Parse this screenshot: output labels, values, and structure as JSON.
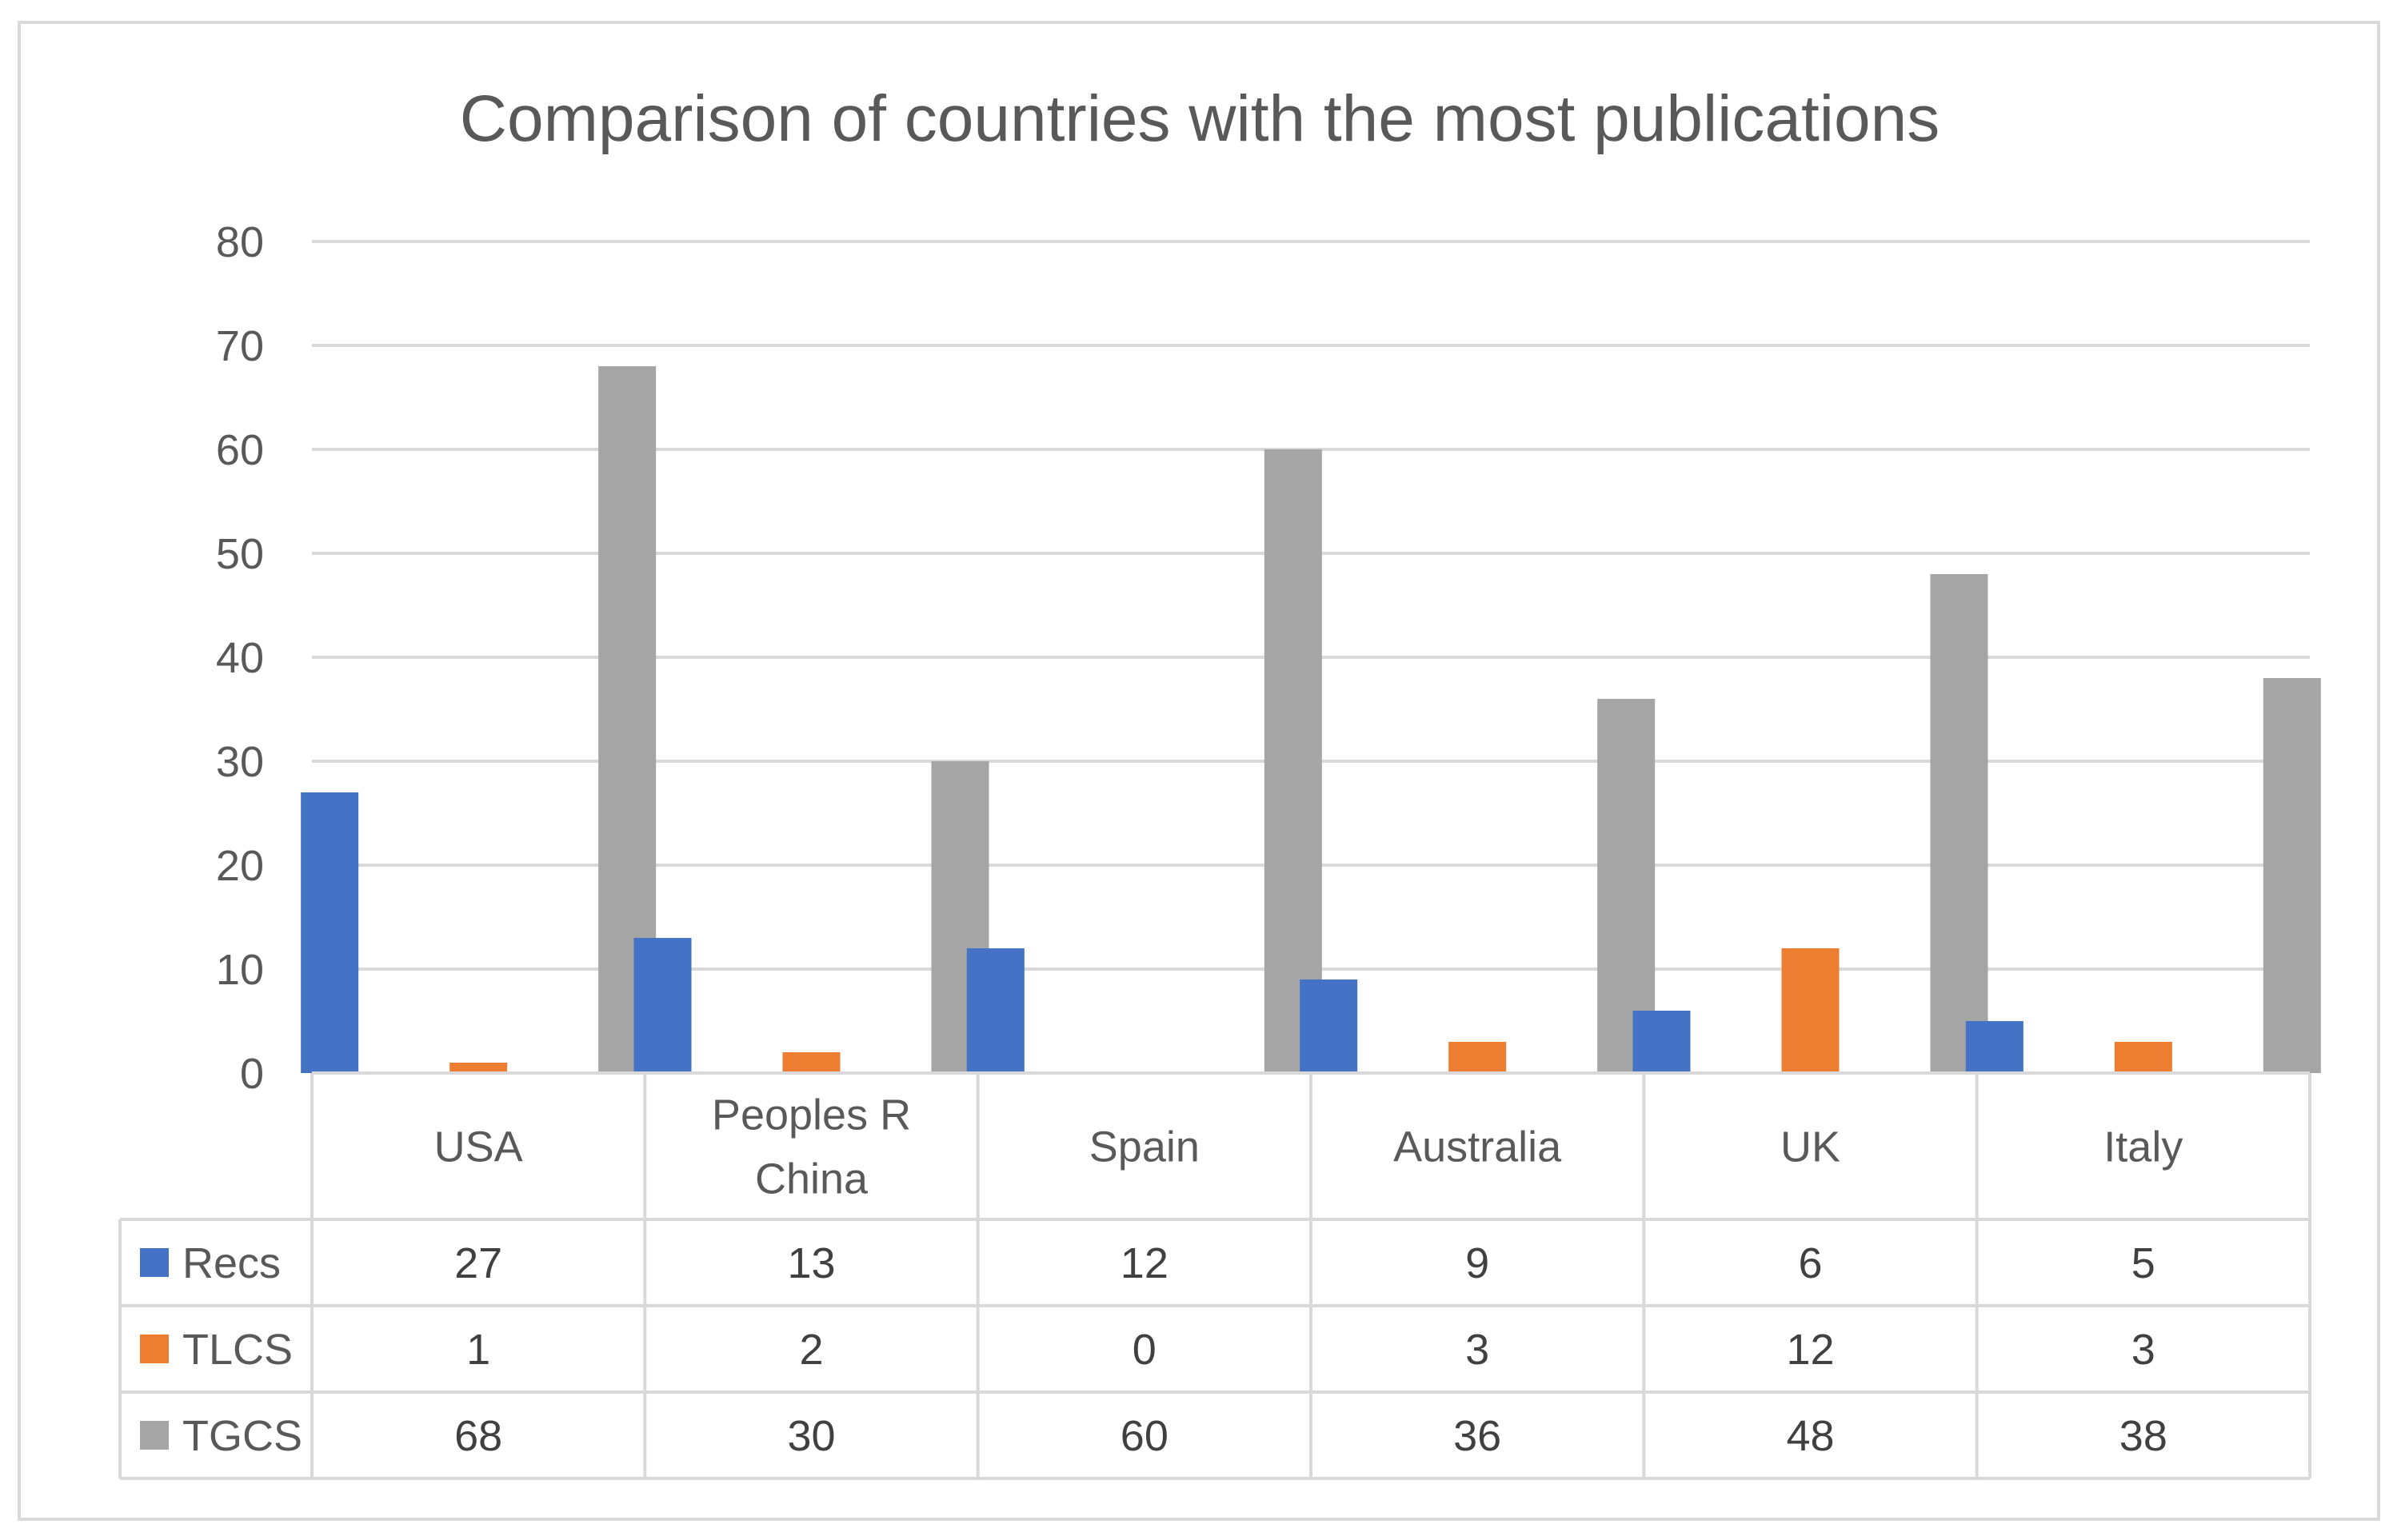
{
  "chart_data": {
    "type": "bar",
    "title": "Comparison of countries with the most  publications",
    "categories": [
      "USA",
      "Peoples R China",
      "Spain",
      "Australia",
      "UK",
      "Italy"
    ],
    "category_lines": [
      [
        "USA"
      ],
      [
        "Peoples R",
        "China"
      ],
      [
        "Spain"
      ],
      [
        "Australia"
      ],
      [
        "UK"
      ],
      [
        "Italy"
      ]
    ],
    "series": [
      {
        "name": "Recs",
        "color": "#4472C4",
        "values": [
          27,
          13,
          12,
          9,
          6,
          5
        ]
      },
      {
        "name": "TLCS",
        "color": "#ED7D31",
        "values": [
          1,
          2,
          0,
          3,
          12,
          3
        ]
      },
      {
        "name": "TGCS",
        "color": "#A5A5A5",
        "values": [
          68,
          30,
          60,
          36,
          48,
          38
        ]
      }
    ],
    "ylim": [
      0,
      80
    ],
    "yticks": [
      0,
      10,
      20,
      30,
      40,
      50,
      60,
      70,
      80
    ],
    "grid": true,
    "legend": "data-table"
  }
}
